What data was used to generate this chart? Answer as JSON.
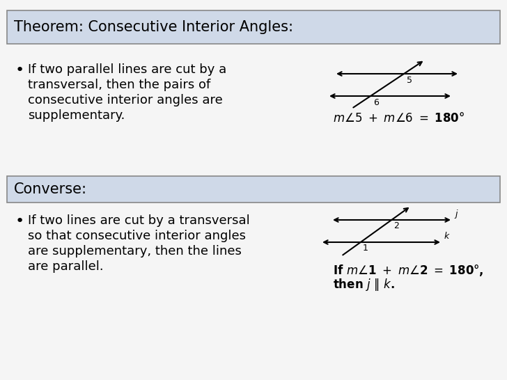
{
  "bg_color": "#dce6f0",
  "white_bg": "#f5f5f5",
  "title1": "Theorem: Consecutive Interior Angles:",
  "title2": "Converse:",
  "bullet1_lines": [
    "If two parallel lines are cut by a",
    "transversal, then the pairs of",
    "consecutive interior angles are",
    "supplementary."
  ],
  "bullet2_lines": [
    "If two lines are cut by a transversal",
    "so that consecutive interior angles",
    "are supplementary, then the lines",
    "are parallel."
  ],
  "box_bg": "#cfd9e8",
  "text_color": "#000000",
  "title_fontsize": 15,
  "body_fontsize": 13,
  "eq_fontsize": 12,
  "small_fontsize": 9
}
